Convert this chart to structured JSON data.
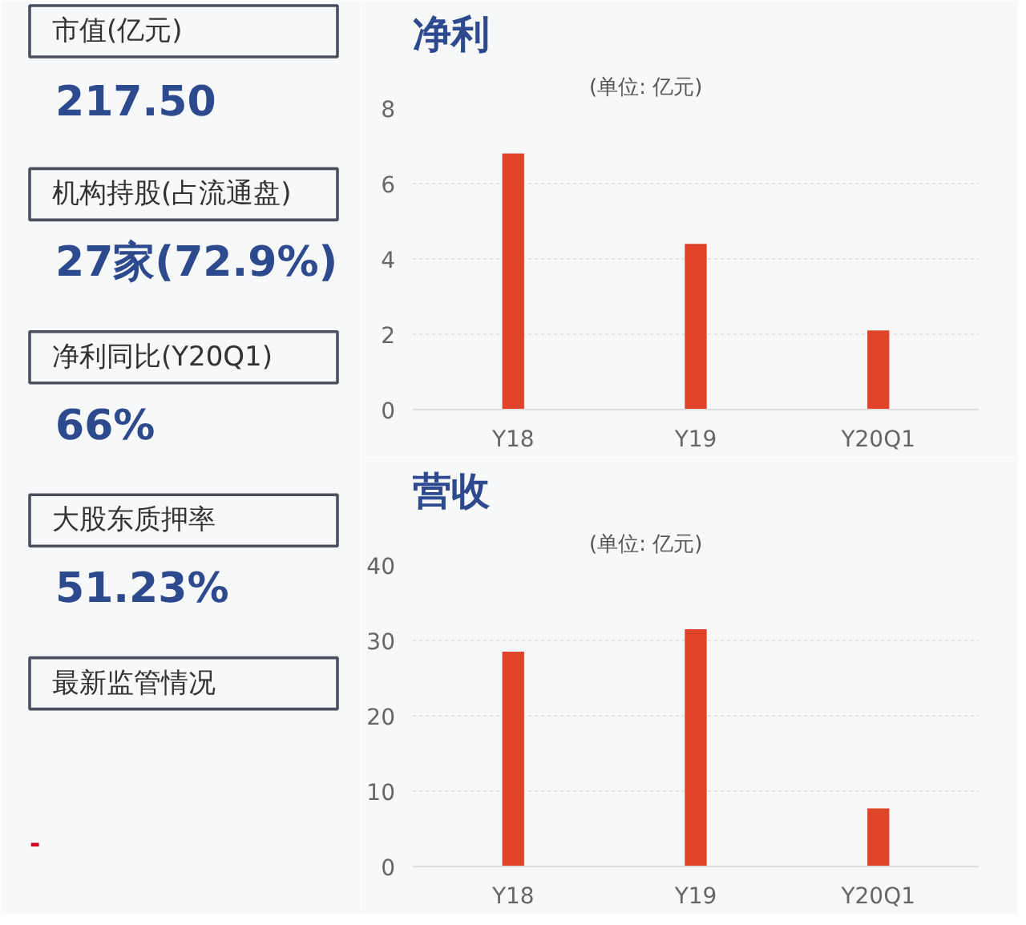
{
  "chart_data": [
    {
      "type": "other",
      "annotations": [
        "市值(亿元)",
        "217.50",
        "机构持股(占流通盘)",
        "27家(72.9%)",
        "净利同比(Y20Q1)",
        "66%",
        "大股东质押率",
        "51.23%",
        "最新监管情况",
        "-"
      ]
    },
    {
      "type": "bar",
      "title": "净利",
      "subtitle": "(单位: 亿元)",
      "categories": [
        "Y18",
        "Y19",
        "Y20Q1"
      ],
      "values": [
        6.8,
        4.4,
        2.1
      ],
      "color": "#e0452a",
      "ylim": [
        0,
        8
      ],
      "yticks": [
        0,
        2,
        4,
        6,
        8
      ],
      "grid": "y"
    },
    {
      "type": "bar",
      "title": "营收",
      "subtitle": "(单位: 亿元)",
      "categories": [
        "Y18",
        "Y19",
        "Y20Q1"
      ],
      "values": [
        28.5,
        31.5,
        7.7
      ],
      "color": "#e0452a",
      "ylim": [
        0,
        40
      ],
      "yticks": [
        0,
        10,
        20,
        30,
        40
      ],
      "grid": "y"
    }
  ]
}
